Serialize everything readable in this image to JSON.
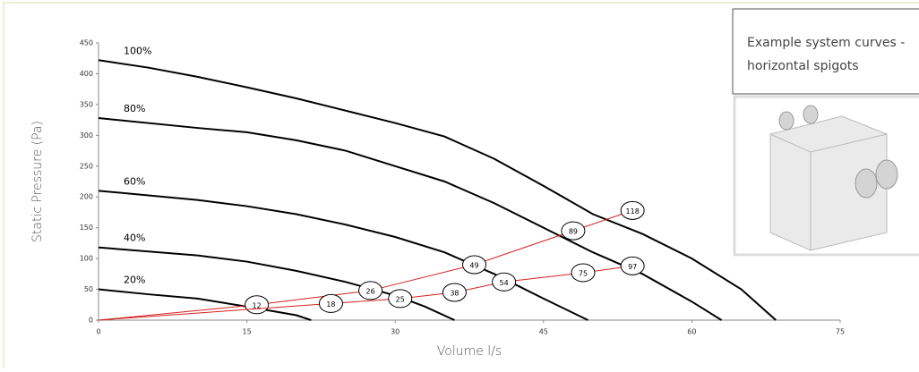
{
  "chart_data": {
    "type": "line",
    "x_label": "Volume l/s",
    "y_label": "Static Pressure (Pa)",
    "xlim": [
      0,
      75
    ],
    "xticks": [
      0,
      15,
      30,
      45,
      60,
      75
    ],
    "ylim": [
      0,
      450
    ],
    "yticks": [
      0,
      50,
      100,
      150,
      200,
      250,
      300,
      350,
      400,
      450
    ],
    "series": [
      {
        "name": "100%",
        "color": "#000000",
        "x": [
          0,
          5,
          10,
          15,
          20,
          25,
          30,
          35,
          40,
          45,
          50,
          55,
          60,
          65,
          68.5
        ],
        "values": [
          422,
          410,
          395,
          378,
          360,
          340,
          320,
          298,
          262,
          218,
          172,
          140,
          100,
          50,
          0
        ]
      },
      {
        "name": "80%",
        "color": "#000000",
        "x": [
          0,
          10,
          15,
          20,
          25,
          30,
          35,
          40,
          45,
          50,
          55,
          60,
          63
        ],
        "values": [
          328,
          312,
          305,
          292,
          275,
          250,
          225,
          190,
          150,
          110,
          75,
          30,
          0
        ]
      },
      {
        "name": "60%",
        "color": "#000000",
        "x": [
          0,
          10,
          15,
          20,
          25,
          30,
          35,
          40,
          45,
          49.5
        ],
        "values": [
          210,
          195,
          185,
          172,
          155,
          135,
          110,
          75,
          35,
          0
        ]
      },
      {
        "name": "40%",
        "color": "#000000",
        "x": [
          0,
          10,
          15,
          20,
          25,
          30,
          33,
          36
        ],
        "values": [
          118,
          105,
          95,
          80,
          62,
          40,
          22,
          0
        ]
      },
      {
        "name": "20%",
        "color": "#000000",
        "x": [
          0,
          5,
          10,
          15,
          20,
          21.5
        ],
        "values": [
          50,
          42,
          35,
          22,
          8,
          0
        ]
      }
    ],
    "system_curves": [
      {
        "color": "#d62020",
        "x": [
          0,
          16,
          27.5,
          38,
          48,
          54
        ],
        "values": [
          0,
          25,
          48,
          90,
          145,
          178
        ],
        "point_labels": [
          null,
          "12",
          "26",
          "49",
          "89",
          "118"
        ]
      },
      {
        "color": "#d62020",
        "x": [
          0,
          23.5,
          30.5,
          36,
          41,
          49,
          54
        ],
        "values": [
          0,
          27,
          35,
          45,
          62,
          77,
          88
        ],
        "point_labels": [
          null,
          "18",
          "25",
          "38",
          "54",
          "75",
          "97"
        ]
      }
    ]
  },
  "inset_caption": [
    "Example system curves -",
    "horizontal spigots"
  ]
}
